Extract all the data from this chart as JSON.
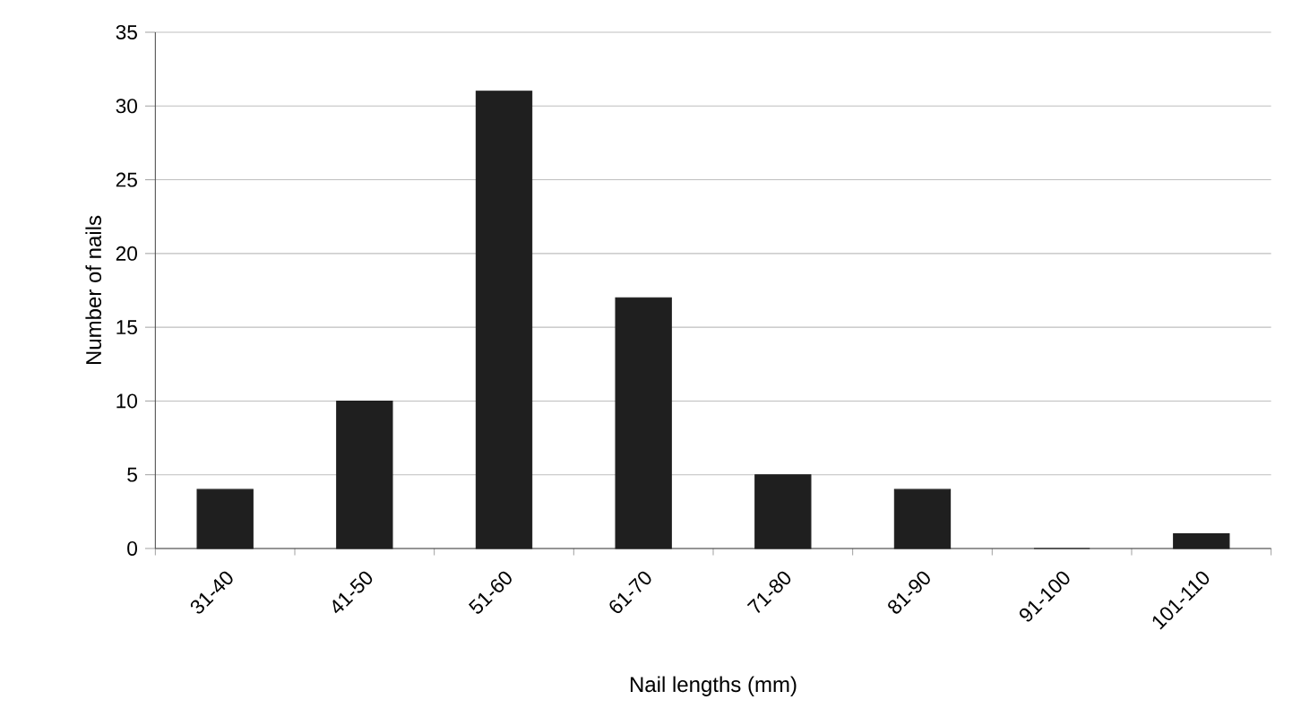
{
  "chart_data": {
    "type": "bar",
    "xlabel": "Nail lengths (mm)",
    "ylabel": "Number of nails",
    "categories": [
      "31-40",
      "41-50",
      "51-60",
      "61-70",
      "71-80",
      "81-90",
      "91-100",
      "101-110"
    ],
    "values": [
      4,
      10,
      31,
      17,
      5,
      4,
      0,
      1
    ],
    "color": "#1f1f1f",
    "ylim": [
      0,
      35
    ],
    "yticks": [
      0,
      5,
      10,
      15,
      20,
      25,
      30,
      35
    ],
    "grid": "y"
  }
}
